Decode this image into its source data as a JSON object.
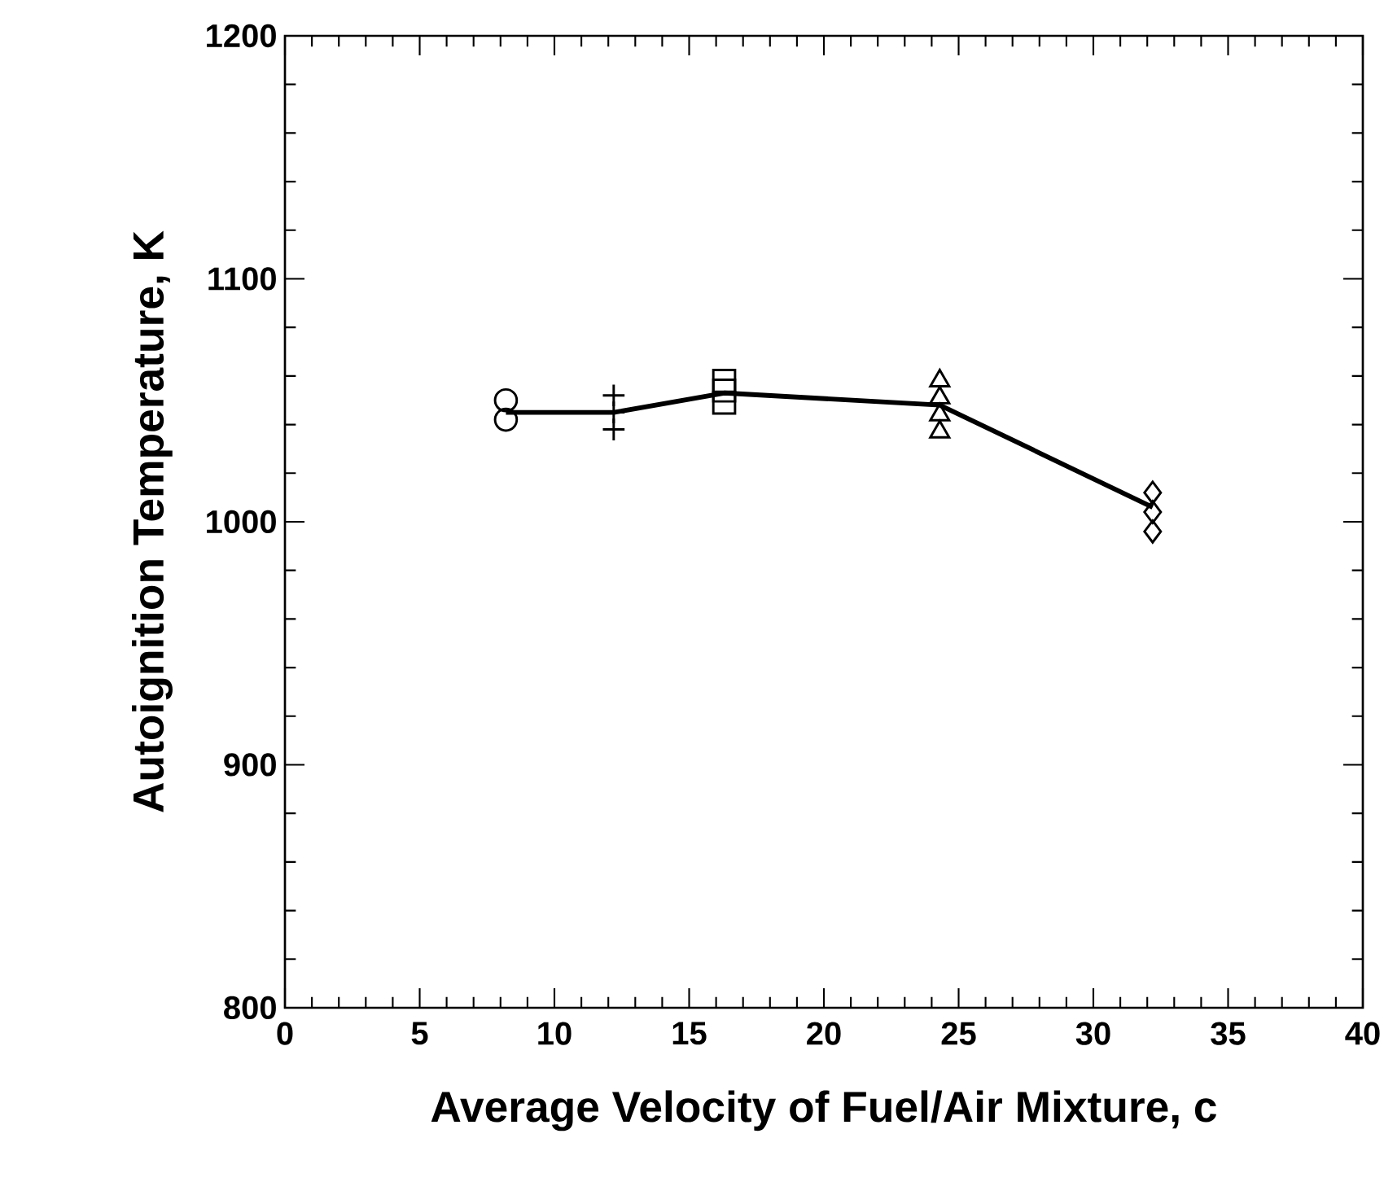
{
  "chart_data": {
    "type": "line",
    "xlabel": "Average Velocity of Fuel/Air Mixture, c",
    "ylabel": "Autoignition Temperature, K",
    "xlim": [
      0,
      40
    ],
    "xticks": [
      0,
      5,
      10,
      15,
      20,
      25,
      30,
      35,
      40
    ],
    "ylim": [
      800,
      1200
    ],
    "yticks": [
      800,
      900,
      1000,
      1100,
      1200
    ],
    "series": [
      {
        "color": "#000000",
        "marker": "none",
        "x": [
          8.2,
          12.2,
          16.3,
          24.3,
          32.2
        ],
        "values": [
          1045,
          1045,
          1053,
          1048,
          1006
        ]
      },
      {
        "type": "scatter",
        "color": "#000000",
        "marker": "circle",
        "x": [
          8.2,
          8.2
        ],
        "values": [
          1050,
          1042
        ]
      },
      {
        "type": "scatter",
        "color": "#000000",
        "marker": "cross",
        "x": [
          12.2,
          12.2,
          12.2
        ],
        "values": [
          1052,
          1045,
          1038
        ]
      },
      {
        "type": "scatter",
        "color": "#000000",
        "marker": "square",
        "x": [
          16.3,
          16.3,
          16.3
        ],
        "values": [
          1058,
          1054,
          1049
        ]
      },
      {
        "type": "scatter",
        "color": "#000000",
        "marker": "triangle",
        "x": [
          24.3,
          24.3,
          24.3,
          24.3
        ],
        "values": [
          1058,
          1051,
          1044,
          1037
        ]
      },
      {
        "type": "scatter",
        "color": "#000000",
        "marker": "diamond",
        "x": [
          32.2,
          32.2,
          32.2
        ],
        "values": [
          1012,
          1004,
          996
        ]
      }
    ]
  }
}
